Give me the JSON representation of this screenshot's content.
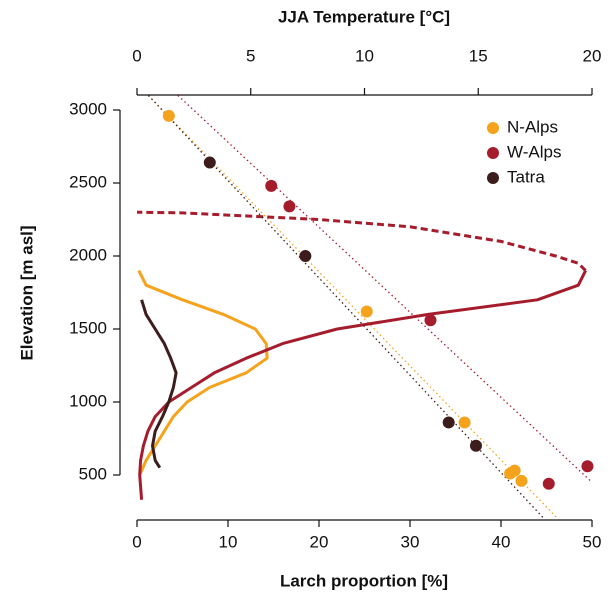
{
  "chart_data": {
    "type": "line",
    "x_label_top": "JJA Temperature [°C]",
    "x_label": "Larch proportion [%]",
    "y_label": "Elevation [m asl]",
    "xlim": [
      0,
      50
    ],
    "xticks": [
      0,
      10,
      20,
      30,
      40,
      50
    ],
    "x2lim": [
      0,
      20
    ],
    "x2ticks": [
      0,
      5,
      10,
      15,
      20
    ],
    "ylim": [
      500,
      3000
    ],
    "yticks": [
      500,
      1000,
      1500,
      2000,
      2500,
      3000
    ],
    "legend": "top-right",
    "series": [
      {
        "name": "N-Alps",
        "color": "#f5a21d",
        "temp_x": [
          1.4,
          10.1,
          14.4,
          16.4,
          16.6,
          16.9
        ],
        "temp_y": [
          2960,
          1620,
          860,
          510,
          530,
          460
        ],
        "fit_x": [
          0.5,
          18.5
        ],
        "fit_y": [
          3100,
          200
        ],
        "larch_x": [
          0.2,
          1,
          5,
          9.5,
          13,
          14.2,
          14.3,
          12,
          8,
          5.5,
          4,
          3,
          2,
          1,
          0.3
        ],
        "larch_y": [
          1900,
          1800,
          1700,
          1600,
          1500,
          1400,
          1300,
          1200,
          1100,
          1000,
          900,
          800,
          700,
          600,
          500
        ]
      },
      {
        "name": "W-Alps",
        "color": "#a51d2d",
        "temp_x": [
          5.9,
          6.7,
          12.9,
          19.8,
          18.1
        ],
        "temp_y": [
          2480,
          2340,
          1560,
          560,
          440
        ],
        "fit_x": [
          1.8,
          20
        ],
        "fit_y": [
          3100,
          450
        ],
        "larch_x": [
          0.5,
          0.3,
          0.4,
          0.7,
          1.2,
          2,
          3.5,
          6,
          8.5,
          12,
          16,
          22,
          32,
          44,
          48.5,
          49.3
        ],
        "larch_y": [
          330,
          500,
          600,
          700,
          800,
          900,
          1000,
          1100,
          1200,
          1300,
          1400,
          1500,
          1600,
          1700,
          1800,
          1900
        ],
        "larch_dashed_x": [
          49.3,
          48.5,
          46,
          40,
          30,
          20,
          5,
          0
        ],
        "larch_dashed_y": [
          1900,
          1950,
          2000,
          2100,
          2200,
          2250,
          2295,
          2300
        ]
      },
      {
        "name": "Tatra",
        "color": "#3d1c1c",
        "temp_x": [
          3.2,
          7.4,
          13.7,
          14.9
        ],
        "temp_y": [
          2640,
          2000,
          860,
          700
        ],
        "fit_x": [
          0.5,
          17.9
        ],
        "fit_y": [
          3100,
          200
        ],
        "larch_x": [
          0.5,
          1,
          2,
          3,
          3.7,
          4.3,
          4,
          3.5,
          2.8,
          2,
          1.7,
          2,
          2.5
        ],
        "larch_y": [
          1700,
          1600,
          1500,
          1400,
          1300,
          1200,
          1100,
          1000,
          900,
          800,
          700,
          600,
          550
        ]
      }
    ]
  }
}
